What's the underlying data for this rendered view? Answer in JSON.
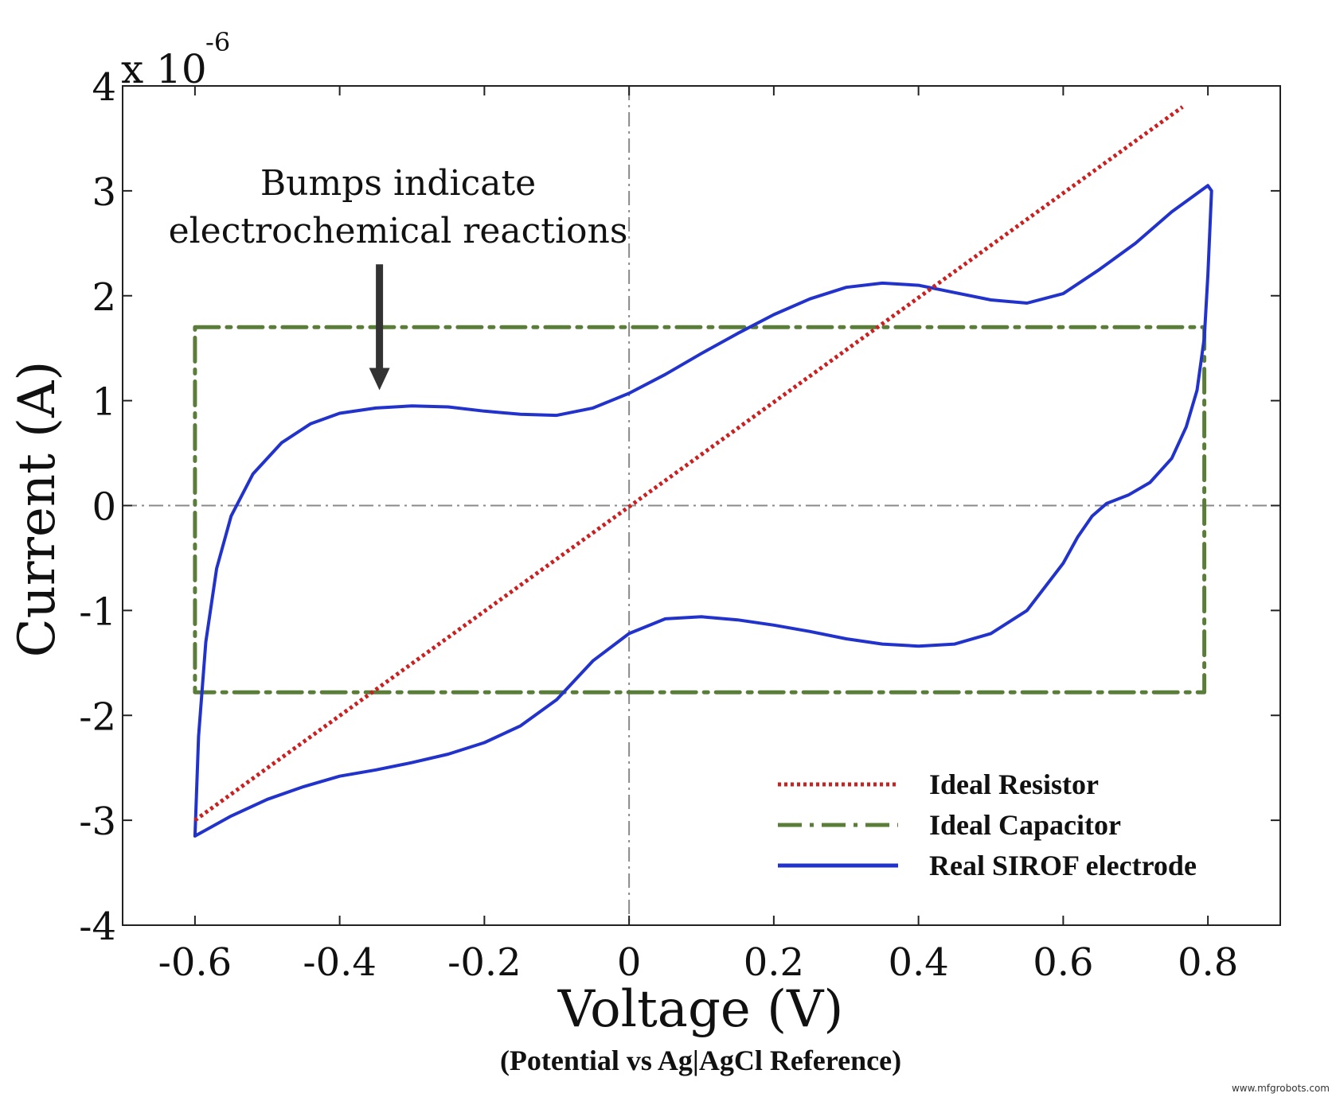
{
  "chart_data": {
    "type": "line",
    "xlabel": "Voltage (V)",
    "subtitle": "(Potential vs Ag|AgCl Reference)",
    "ylabel": "Current (A)",
    "y_scale_label": "x 10",
    "y_scale_exponent": "-6",
    "xlim": [
      -0.7,
      0.9
    ],
    "ylim": [
      -4,
      4
    ],
    "x_ticks": [
      -0.6,
      -0.4,
      -0.2,
      0,
      0.2,
      0.4,
      0.6,
      0.8
    ],
    "x_tick_labels": [
      "-0.6",
      "-0.4",
      "-0.2",
      "0",
      "0.2",
      "0.4",
      "0.6",
      "0.8"
    ],
    "y_ticks": [
      -4,
      -3,
      -2,
      -1,
      0,
      1,
      2,
      3,
      4
    ],
    "y_tick_labels": [
      "-4",
      "-3",
      "-2",
      "-1",
      "0",
      "1",
      "2",
      "3",
      "4"
    ],
    "grid": false,
    "reference_lines": {
      "x": 0,
      "y": 0,
      "color": "#8a8a8a",
      "style": "dash-dot"
    },
    "legend_position": "bottom-right",
    "annotation": {
      "lines": [
        "Bumps indicate",
        "electrochemical reactions"
      ],
      "arrow_tip": {
        "x": -0.345,
        "y": 1.1
      },
      "arrow_tail": {
        "x": -0.345,
        "y": 2.3
      }
    },
    "series": [
      {
        "name": "Ideal Resistor",
        "color": "#cc1f1f",
        "style": "dotted",
        "x": [
          -0.6,
          0.765
        ],
        "y": [
          -3.0,
          3.8
        ]
      },
      {
        "name": "Ideal Capacitor",
        "color": "#5a7d3a",
        "style": "dash-dot",
        "x": [
          -0.6,
          0.795,
          0.795,
          -0.6,
          -0.6
        ],
        "y": [
          1.7,
          1.7,
          -1.78,
          -1.78,
          1.7
        ]
      },
      {
        "name": "Real SIROF electrode",
        "color": "#2233cc",
        "style": "solid",
        "x": [
          -0.6,
          -0.595,
          -0.585,
          -0.57,
          -0.55,
          -0.52,
          -0.48,
          -0.44,
          -0.4,
          -0.35,
          -0.3,
          -0.25,
          -0.2,
          -0.15,
          -0.1,
          -0.05,
          0.0,
          0.05,
          0.1,
          0.15,
          0.2,
          0.25,
          0.3,
          0.35,
          0.4,
          0.45,
          0.5,
          0.55,
          0.6,
          0.65,
          0.7,
          0.75,
          0.8,
          0.805,
          0.8,
          0.795,
          0.785,
          0.77,
          0.75,
          0.72,
          0.69,
          0.66,
          0.64,
          0.62,
          0.6,
          0.55,
          0.5,
          0.45,
          0.4,
          0.35,
          0.3,
          0.25,
          0.2,
          0.15,
          0.1,
          0.05,
          0.0,
          -0.05,
          -0.1,
          -0.15,
          -0.2,
          -0.25,
          -0.3,
          -0.35,
          -0.4,
          -0.45,
          -0.5,
          -0.55,
          -0.6
        ],
        "y": [
          -3.15,
          -2.2,
          -1.3,
          -0.6,
          -0.1,
          0.3,
          0.6,
          0.78,
          0.88,
          0.93,
          0.95,
          0.94,
          0.9,
          0.87,
          0.86,
          0.93,
          1.07,
          1.25,
          1.45,
          1.64,
          1.82,
          1.97,
          2.08,
          2.12,
          2.1,
          2.03,
          1.96,
          1.93,
          2.02,
          2.25,
          2.5,
          2.8,
          3.05,
          3.0,
          2.2,
          1.6,
          1.1,
          0.75,
          0.45,
          0.22,
          0.1,
          0.02,
          -0.1,
          -0.3,
          -0.55,
          -1.0,
          -1.22,
          -1.32,
          -1.34,
          -1.32,
          -1.27,
          -1.2,
          -1.14,
          -1.09,
          -1.06,
          -1.08,
          -1.22,
          -1.48,
          -1.85,
          -2.1,
          -2.26,
          -2.37,
          -2.45,
          -2.52,
          -2.58,
          -2.68,
          -2.8,
          -2.96,
          -3.15
        ]
      }
    ]
  },
  "watermark": "www.mfgrobots.com"
}
